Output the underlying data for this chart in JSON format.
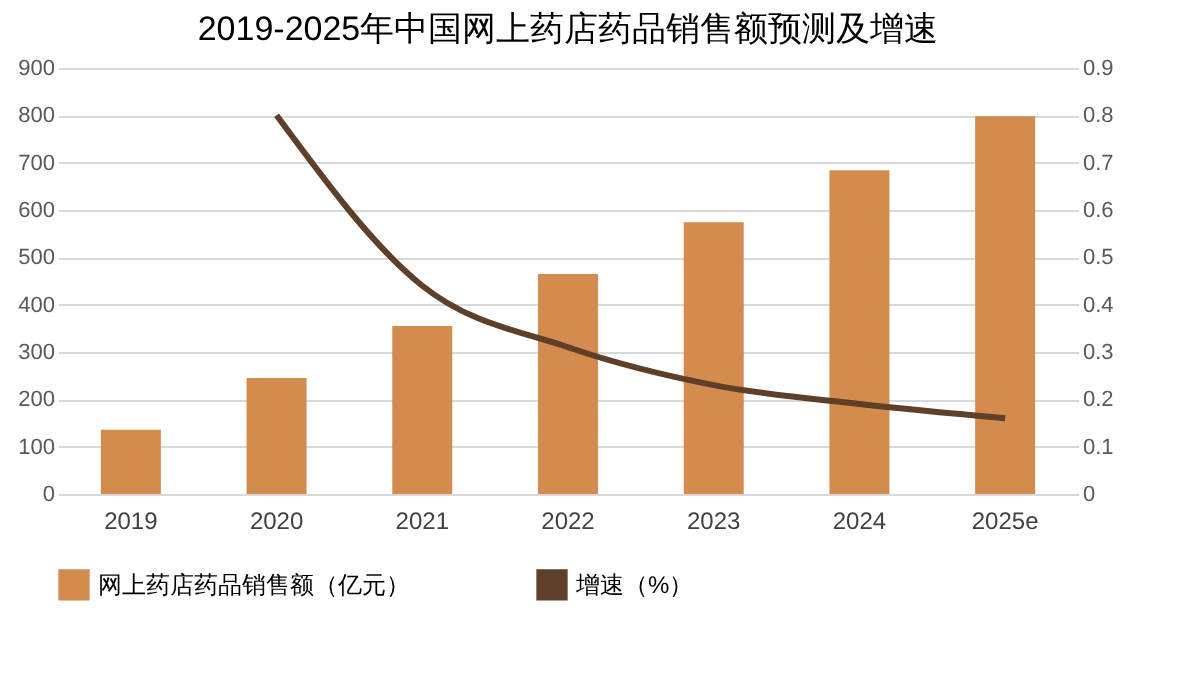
{
  "chart_data": {
    "type": "bar",
    "title": "2019-2025年中国网上药店药品销售额预测及增速",
    "categories": [
      "2019",
      "2020",
      "2021",
      "2022",
      "2023",
      "2024",
      "2025e"
    ],
    "series": [
      {
        "name": "网上药店药品销售额（亿元）",
        "color": "#d38b4e",
        "values": [
          136,
          245,
          355,
          465,
          574,
          684,
          798
        ]
      },
      {
        "name": "增速（%）",
        "type": "line",
        "axis": "y2",
        "color": "#5e3f27",
        "values": [
          null,
          0.8,
          0.44,
          0.31,
          0.23,
          0.19,
          0.16
        ]
      }
    ],
    "ylim": [
      0,
      900
    ],
    "yticks": [
      0,
      100,
      200,
      300,
      400,
      500,
      600,
      700,
      800,
      900
    ],
    "y2lim": [
      0,
      0.9
    ],
    "y2ticks": [
      0,
      0.1,
      0.2,
      0.3,
      0.4,
      0.5,
      0.6,
      0.7,
      0.8,
      0.9
    ],
    "grid": "y",
    "legend": "bottom"
  }
}
